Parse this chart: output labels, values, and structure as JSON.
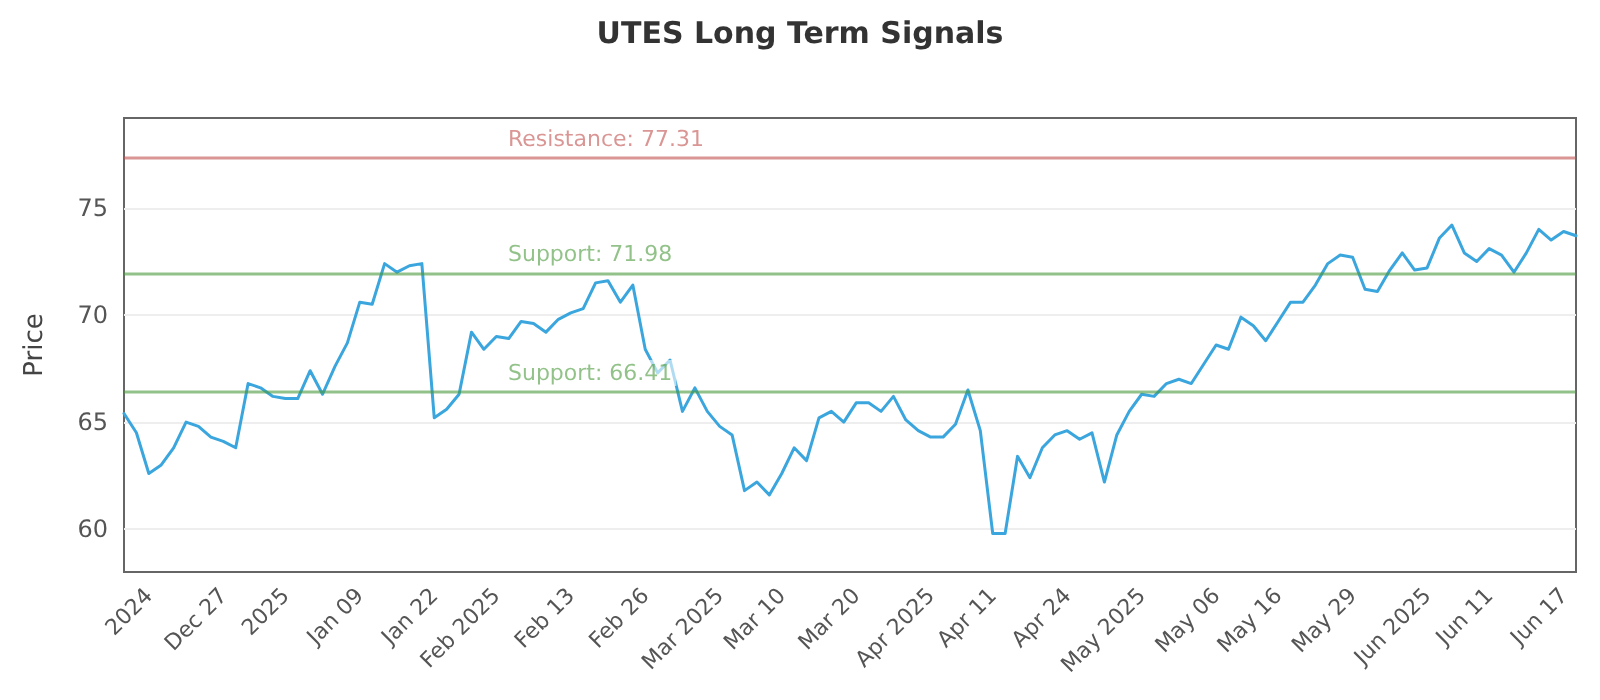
{
  "chart_data": {
    "type": "line",
    "title": "UTES Long Term Signals",
    "ylabel": "Price",
    "categories": [
      null,
      null,
      "2024",
      null,
      null,
      null,
      null,
      null,
      "Dec 27",
      null,
      null,
      null,
      null,
      "2025",
      null,
      null,
      null,
      null,
      null,
      "Jan 09",
      null,
      null,
      null,
      null,
      null,
      "Jan 22",
      null,
      null,
      null,
      null,
      "Feb 2025",
      null,
      null,
      null,
      null,
      null,
      "Feb 13",
      null,
      null,
      null,
      null,
      null,
      "Feb 26",
      null,
      null,
      null,
      null,
      null,
      "Mar 2025",
      null,
      null,
      null,
      null,
      "Mar 10",
      null,
      null,
      null,
      null,
      null,
      "Mar 20",
      null,
      null,
      null,
      null,
      null,
      "Apr 2025",
      null,
      null,
      null,
      null,
      "Apr 11",
      null,
      null,
      null,
      null,
      null,
      "Apr 24",
      null,
      null,
      null,
      null,
      null,
      "May 2025",
      null,
      null,
      null,
      null,
      null,
      "May 06",
      null,
      null,
      null,
      null,
      "May 16",
      null,
      null,
      null,
      null,
      null,
      "May 29",
      null,
      null,
      null,
      null,
      null,
      "Jun 2025",
      null,
      null,
      null,
      null,
      "Jun 11",
      null,
      null,
      null,
      null,
      null,
      "Jun 17",
      null
    ],
    "series": [
      {
        "color": "#3aa6dd",
        "values": [
          65.4,
          64.5,
          62.6,
          63.0,
          63.8,
          65.0,
          64.8,
          64.3,
          64.1,
          63.8,
          66.8,
          66.6,
          66.2,
          66.1,
          66.1,
          67.4,
          66.3,
          67.6,
          68.7,
          70.6,
          70.5,
          72.4,
          72.0,
          72.3,
          72.4,
          65.2,
          65.6,
          66.3,
          69.2,
          68.4,
          69.0,
          68.9,
          69.7,
          69.6,
          69.2,
          69.8,
          70.1,
          70.3,
          71.5,
          71.6,
          70.6,
          71.4,
          68.4,
          67.3,
          67.9,
          65.5,
          66.6,
          65.5,
          64.8,
          64.4,
          61.8,
          62.2,
          61.6,
          62.6,
          63.8,
          63.2,
          65.2,
          65.5,
          65.0,
          65.9,
          65.9,
          65.5,
          66.2,
          65.1,
          64.6,
          64.3,
          64.3,
          64.9,
          66.5,
          64.6,
          59.8,
          59.8,
          63.4,
          62.4,
          63.8,
          64.4,
          64.6,
          64.2,
          64.5,
          62.2,
          64.4,
          65.5,
          66.3,
          66.2,
          66.8,
          67.0,
          66.8,
          67.7,
          68.6,
          68.4,
          69.9,
          69.5,
          68.8,
          69.7,
          70.6,
          70.6,
          71.4,
          72.4,
          72.8,
          72.7,
          71.2,
          71.1,
          72.1,
          72.9,
          72.1,
          72.2,
          73.6,
          74.2,
          72.9,
          72.5,
          73.1,
          72.8,
          72.0,
          72.9,
          74.0,
          73.5,
          73.9,
          73.7
        ]
      }
    ],
    "ylim": [
      58,
      79.2
    ],
    "yticks": [
      60,
      65,
      70,
      75
    ],
    "grid": "y",
    "marker": "none",
    "line_style": "solid",
    "ref_lines": [
      {
        "axis": "y",
        "value": 77.31,
        "label": "Resistance: 77.31",
        "color": "#c0504d"
      },
      {
        "axis": "y",
        "value": 71.98,
        "label": "Support: 71.98",
        "color": "#4a9a3a"
      },
      {
        "axis": "y",
        "value": 66.41,
        "label": "Support: 66.41",
        "color": "#4a9a3a"
      }
    ]
  }
}
